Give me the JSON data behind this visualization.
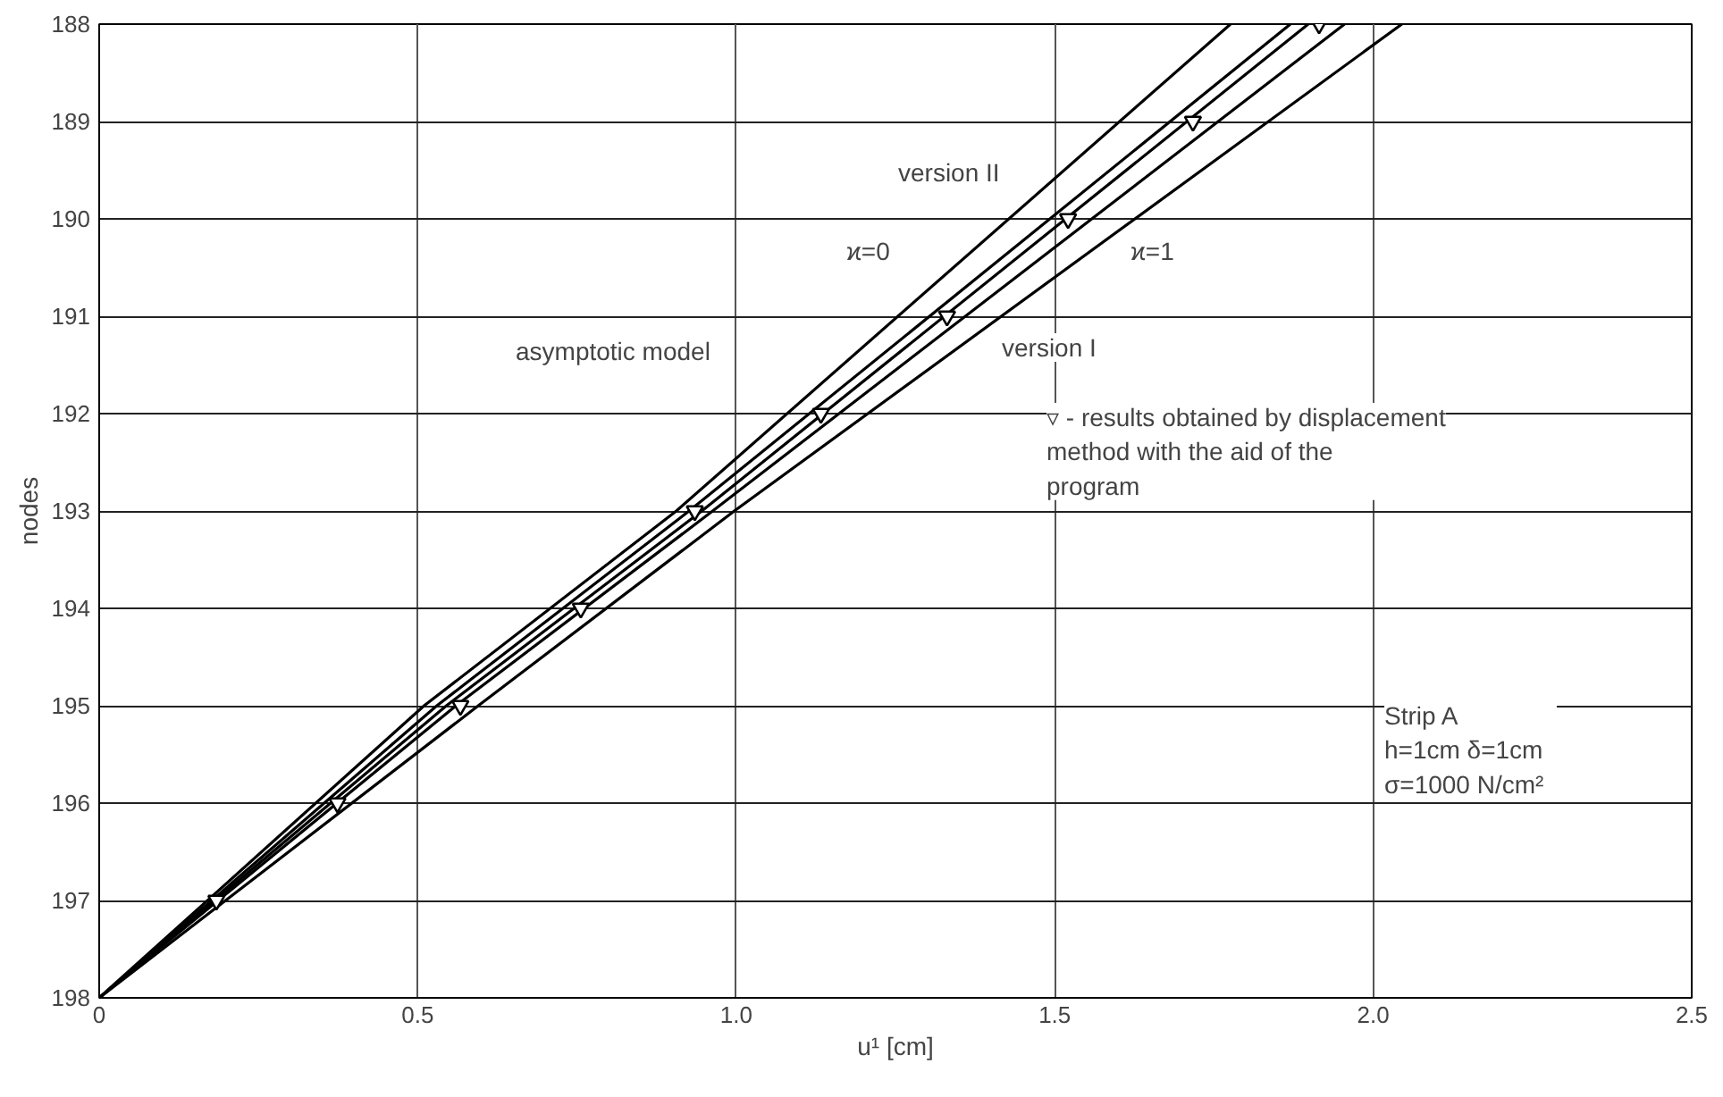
{
  "chart_data": {
    "type": "line",
    "xlabel": "u¹ [cm]",
    "ylabel": "nodes",
    "xlim": [
      0,
      2.5
    ],
    "xticks": [
      {
        "value": 0,
        "label": "0"
      },
      0.5,
      {
        "value": 1,
        "label": "1.0"
      },
      1.5,
      {
        "value": 2,
        "label": "2.0"
      },
      2.5
    ],
    "ylim": [
      198,
      188
    ],
    "yticks": [
      188,
      189,
      190,
      191,
      192,
      193,
      194,
      195,
      196,
      197,
      198
    ],
    "grid": true,
    "marker": "none",
    "line_style": "solid",
    "series": [
      {
        "color": "#000000",
        "x": [
          0,
          0.51,
          0.906,
          1.776
        ],
        "values": [
          198,
          195,
          193,
          188
        ]
      },
      {
        "color": "#000000",
        "x": [
          0,
          0.53,
          0.926,
          1.87
        ],
        "values": [
          198,
          195,
          193,
          188
        ]
      },
      {
        "color": "#000000",
        "x": [
          0,
          0.545,
          0.946,
          1.898
        ],
        "values": [
          198,
          195,
          193,
          188
        ]
      },
      {
        "color": "#000000",
        "x": [
          0,
          0.56,
          0.963,
          1.955
        ],
        "values": [
          198,
          195,
          193,
          188
        ]
      },
      {
        "color": "#000000",
        "x": [
          0,
          0.595,
          0.997,
          2.045
        ],
        "values": [
          198,
          195,
          193,
          188
        ]
      },
      {
        "type": "scatter",
        "marker": "triangle",
        "color": "#000000",
        "x": [
          0.184,
          0.374,
          0.567,
          0.756,
          0.935,
          1.133,
          1.331,
          1.521,
          1.717,
          1.915
        ],
        "values": [
          197,
          196,
          195,
          194,
          193,
          192,
          191,
          190,
          189,
          188
        ]
      }
    ],
    "annotations": [
      "version II",
      "ϰ=0",
      "asymptotic model",
      "ϰ=1",
      "version I",
      "▿ - results obtained by displacement\n     method with the aid of the\n     program",
      "Strip A\nh=1cm   δ=1cm\nσ=1000 N/cm²"
    ]
  }
}
